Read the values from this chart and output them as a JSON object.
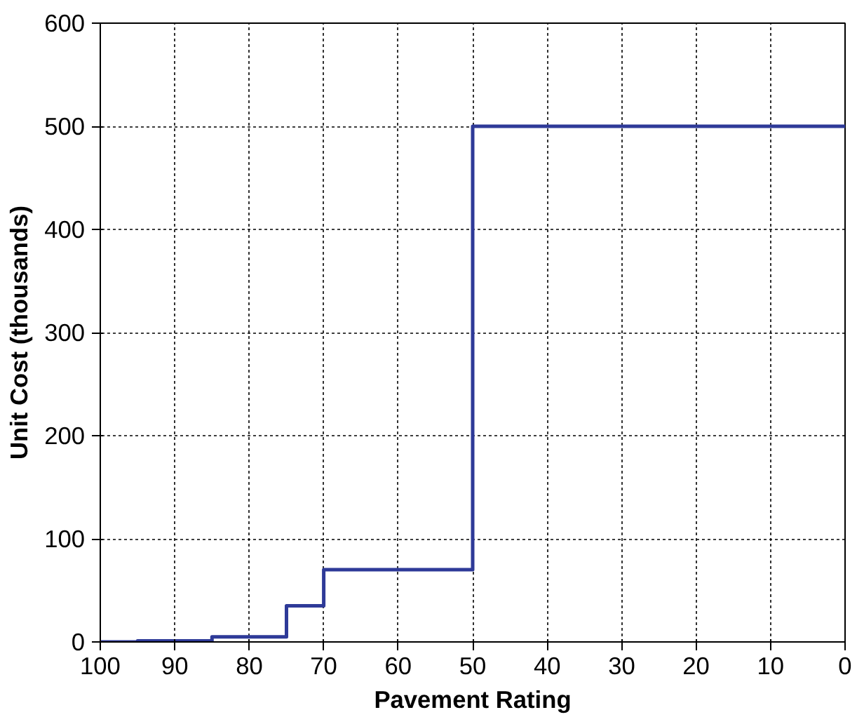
{
  "chart_data": {
    "type": "step",
    "xlabel": "Pavement Rating",
    "ylabel": "Unit Cost (thousands)",
    "x": [
      100,
      95,
      85,
      75,
      70,
      50,
      0
    ],
    "series": [
      {
        "color": "#2e3a98",
        "values": [
          0,
          1,
          5,
          35,
          70,
          500,
          500
        ]
      }
    ],
    "xlim": [
      100,
      0
    ],
    "ylim": [
      0,
      600
    ],
    "xticks": [
      100,
      90,
      80,
      70,
      60,
      50,
      40,
      30,
      20,
      10,
      0
    ],
    "yticks": [
      0,
      100,
      200,
      300,
      400,
      500,
      600
    ],
    "grid": true,
    "marker": "none",
    "line_style": "solid"
  }
}
